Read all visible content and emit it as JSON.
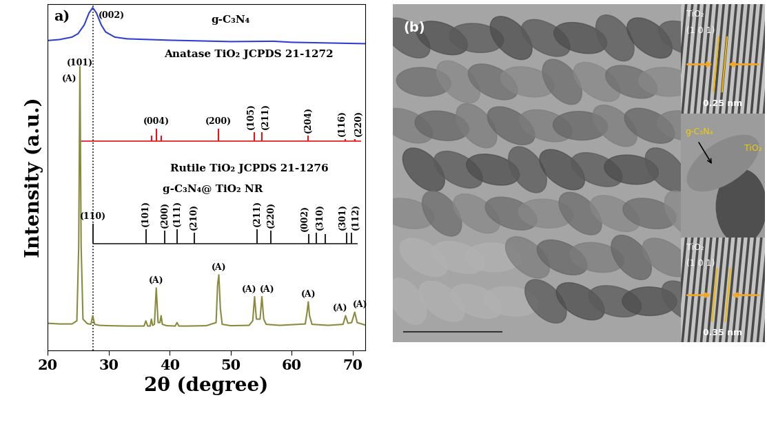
{
  "chart_data": {
    "type": "line",
    "title": "a)",
    "x_label": "2θ (degree)",
    "y_label": "Intensity (a.u.)",
    "xlim": [
      20,
      72
    ],
    "xticks": [
      20,
      30,
      40,
      50,
      60,
      70
    ],
    "ylim": [
      0,
      100
    ],
    "tick_labels": "x",
    "vline_x": 27.4,
    "series": [
      {
        "name": "g-C₃N₄",
        "type": "line",
        "color": "#2f3fd0",
        "x": [
          20,
          22,
          24,
          25,
          26,
          26.8,
          27.4,
          28,
          28.8,
          29.5,
          31,
          33,
          40,
          50,
          57,
          60,
          66,
          72
        ],
        "values": [
          89.5,
          89.8,
          90.5,
          91.5,
          94,
          97.5,
          99,
          97.5,
          94,
          92,
          90.5,
          90,
          89.6,
          89.2,
          89.3,
          89.0,
          88.8,
          88.6
        ],
        "annotations": [
          {
            "x": 27.4,
            "text": "(002)"
          }
        ]
      },
      {
        "name": "Anatase TiO₂ JCPDS 21-1272",
        "type": "stem",
        "color": "#e3121b",
        "baseline": 60.4,
        "x": [
          25.3,
          37.0,
          37.8,
          38.6,
          48.0,
          53.9,
          55.1,
          62.7,
          68.8,
          70.3
        ],
        "values": [
          81,
          62,
          64,
          62,
          64,
          63,
          63,
          62,
          61,
          61
        ],
        "peak_labels": [
          "(101)",
          null,
          "(004)",
          null,
          "(200)",
          "(105)",
          "(211)",
          "(204)",
          "(116)",
          "(220)"
        ]
      },
      {
        "name": "Rutile TiO₂ JCPDS 21-1276",
        "type": "stem",
        "color": "#222222",
        "baseline": 30.7,
        "x": [
          27.4,
          36.1,
          39.2,
          41.2,
          44.0,
          54.3,
          56.6,
          62.8,
          64.0,
          65.5,
          69.0,
          69.8
        ],
        "values": [
          36.6,
          35,
          34.5,
          35,
          34,
          35,
          34.5,
          33.5,
          34,
          33.5,
          34,
          34
        ],
        "peak_labels": [
          "(110)",
          "(101)",
          "(200)",
          "(111)",
          "(210)",
          "(211)",
          "(220)",
          "(002)",
          "(310)",
          null,
          "(301)",
          "(112)"
        ]
      },
      {
        "name": "g-C₃N₄@ TiO₂ NR",
        "type": "line",
        "color": "#8a8a3e",
        "x": [
          20,
          22,
          24,
          24.8,
          25.1,
          25.3,
          25.5,
          25.8,
          26.5,
          27.1,
          27.4,
          27.7,
          28.5,
          30,
          33,
          35.8,
          36.1,
          36.4,
          36.8,
          37.0,
          37.2,
          37.5,
          37.8,
          38.1,
          38.4,
          38.6,
          38.8,
          39.5,
          40.9,
          41.2,
          41.5,
          43,
          46,
          47.6,
          47.85,
          48.05,
          48.3,
          48.6,
          50,
          53,
          53.6,
          53.9,
          54.2,
          54.5,
          54.8,
          55.1,
          55.4,
          55.8,
          58,
          62.2,
          62.5,
          62.7,
          62.9,
          63.3,
          66,
          68.4,
          68.8,
          69.2,
          69.8,
          70.3,
          70.7,
          72
        ],
        "values": [
          7.8,
          7.6,
          7.6,
          8.5,
          30,
          82,
          30,
          9,
          7.7,
          7.5,
          10,
          7.5,
          7.2,
          7.1,
          7.0,
          7.0,
          8.5,
          7.0,
          7.0,
          9,
          7.2,
          7.5,
          18,
          8,
          8,
          10,
          7.5,
          7.1,
          7.0,
          8,
          7.0,
          7,
          7.1,
          8,
          19,
          21.8,
          12,
          7.5,
          7.1,
          7.2,
          8.5,
          15.5,
          9,
          9,
          9,
          15.5,
          9,
          7.5,
          7.2,
          7.6,
          11,
          14,
          10,
          7.5,
          7.2,
          7.5,
          10,
          7.8,
          8,
          11,
          8,
          7.3
        ],
        "annotations": [
          {
            "x": 25.3,
            "text": "(A)"
          },
          {
            "x": 37.8,
            "text": "(A)"
          },
          {
            "x": 48.05,
            "text": "(A)"
          },
          {
            "x": 53.9,
            "text": "(A)"
          },
          {
            "x": 55.1,
            "text": "(A)"
          },
          {
            "x": 62.7,
            "text": "(A)"
          },
          {
            "x": 68.8,
            "text": "(A)"
          },
          {
            "x": 70.3,
            "text": "(A)"
          }
        ]
      }
    ]
  },
  "image_panel": {
    "label": "(b)",
    "insets": [
      {
        "phase": "TiO₂",
        "plane": "(1 0 1)",
        "d_spacing": "0.25 nm"
      },
      {
        "labels": [
          "g-C₃N₄",
          "TiO₂"
        ]
      },
      {
        "phase": "TiO₂",
        "plane": "(1 0 1)",
        "d_spacing": "0.35 nm"
      }
    ]
  }
}
